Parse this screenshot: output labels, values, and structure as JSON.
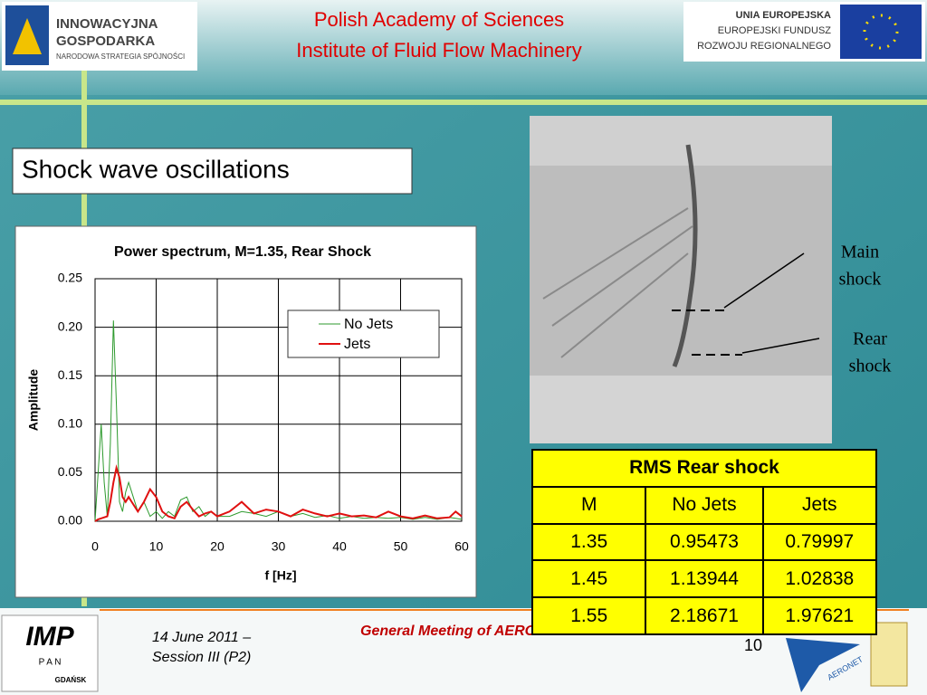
{
  "header": {
    "title_lines": [
      "Polish Academy of Sciences",
      "Institute of Fluid Flow Machinery"
    ],
    "left_logo": [
      "INNOWACYJNA",
      "GOSPODARKA",
      "NARODOWA STRATEGIA SPÓJNOŚCI"
    ],
    "right_logo": [
      "UNIA EUROPEJSKA",
      "EUROPEJSKI FUNDUSZ",
      "ROZWOJU REGIONALNEGO"
    ]
  },
  "section_title": "Shock wave oscillations",
  "chart_data": {
    "type": "line",
    "title": "Power spectrum, M=1.35, Rear Shock",
    "x_label": "f [Hz]",
    "y_label": "Amplitude",
    "x": [
      0,
      0.5,
      1,
      1.5,
      2,
      2.5,
      3,
      3.5,
      4,
      4.5,
      5,
      5.5,
      6,
      7,
      8,
      9,
      10,
      11,
      12,
      13,
      14,
      15,
      16,
      17,
      18,
      19,
      20,
      22,
      24,
      26,
      28,
      30,
      32,
      34,
      36,
      38,
      40,
      42,
      44,
      46,
      48,
      50,
      52,
      54,
      56,
      58,
      59,
      60
    ],
    "series": [
      {
        "name": "No Jets",
        "color": "#2e9a2e",
        "width": 1,
        "values": [
          0,
          0.05,
          0.1,
          0.04,
          0.005,
          0.08,
          0.207,
          0.12,
          0.02,
          0.01,
          0.03,
          0.04,
          0.03,
          0.01,
          0.02,
          0.005,
          0.01,
          0.003,
          0.01,
          0.005,
          0.022,
          0.025,
          0.01,
          0.015,
          0.005,
          0.01,
          0.005,
          0.005,
          0.01,
          0.008,
          0.005,
          0.01,
          0.005,
          0.008,
          0.004,
          0.006,
          0.003,
          0.005,
          0.003,
          0.004,
          0.003,
          0.004,
          0.002,
          0.004,
          0.002,
          0.004,
          0.003,
          0.002
        ]
      },
      {
        "name": "Jets",
        "color": "#e01010",
        "width": 2,
        "values": [
          0,
          0.002,
          0.003,
          0.004,
          0.005,
          0.02,
          0.04,
          0.055,
          0.045,
          0.025,
          0.02,
          0.025,
          0.02,
          0.01,
          0.02,
          0.033,
          0.025,
          0.01,
          0.005,
          0.003,
          0.015,
          0.02,
          0.012,
          0.005,
          0.008,
          0.01,
          0.005,
          0.01,
          0.02,
          0.008,
          0.012,
          0.01,
          0.005,
          0.012,
          0.008,
          0.005,
          0.008,
          0.005,
          0.006,
          0.004,
          0.01,
          0.005,
          0.003,
          0.006,
          0.003,
          0.004,
          0.01,
          0.005
        ]
      }
    ],
    "xlim": [
      0,
      60
    ],
    "xticks": [
      0,
      10,
      20,
      30,
      40,
      50,
      60
    ],
    "ylim": [
      0,
      0.25
    ],
    "yticks": [
      {
        "value": 0,
        "label": "0.00"
      },
      0.05,
      {
        "value": 0.1,
        "label": "0.10"
      },
      0.15,
      {
        "value": 0.2,
        "label": "0.20"
      },
      0.25
    ],
    "grid": true,
    "legend": "upper-right"
  },
  "annotations": {
    "main": [
      "Main",
      "shock"
    ],
    "rear": [
      "Rear",
      "shock"
    ]
  },
  "table": {
    "title": "RMS Rear shock",
    "header": [
      "M",
      "No Jets",
      "Jets"
    ],
    "rows": [
      [
        "1.35",
        "0.95473",
        "0.79997"
      ],
      [
        "1.45",
        "1.13944",
        "1.02838"
      ],
      [
        "1.55",
        "2.18671",
        "1.97621"
      ]
    ]
  },
  "footer": {
    "date_lines": [
      "14 June 2011 –",
      "Session III (P2)"
    ],
    "meeting": "General Meeting of AERONET",
    "page": "10",
    "imp_logo": [
      "IMP",
      "P A N",
      "GDAŃSK"
    ],
    "aeronet_logo": "AERONET"
  }
}
